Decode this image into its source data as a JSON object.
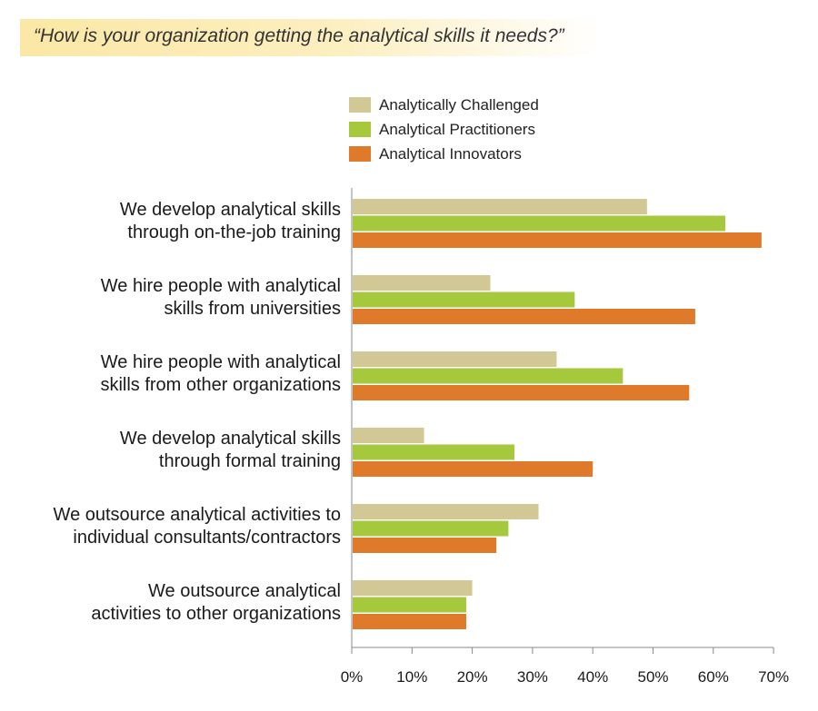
{
  "header": {
    "title": "“How is your organization getting the analytical skills it needs?”"
  },
  "chart_data": {
    "type": "bar",
    "orientation": "horizontal",
    "title": "“How is your organization getting the analytical skills it needs?”",
    "xlabel": "",
    "ylabel": "",
    "xlim": [
      0,
      70
    ],
    "ticks": [
      0,
      10,
      20,
      30,
      40,
      50,
      60,
      70
    ],
    "tick_labels": [
      "0%",
      "10%",
      "20%",
      "30%",
      "40%",
      "50%",
      "60%",
      "70%"
    ],
    "grid": false,
    "legend_position": "top",
    "categories": [
      [
        "We develop analytical skills",
        "through on-the-job training"
      ],
      [
        "We hire people with analytical",
        "skills from universities"
      ],
      [
        "We hire people with analytical",
        "skills from other organizations"
      ],
      [
        "We develop analytical skills",
        "through formal training"
      ],
      [
        "We outsource analytical activities to",
        "individual consultants/contractors"
      ],
      [
        "We outsource analytical",
        "activities to other organizations"
      ]
    ],
    "series": [
      {
        "name": "Analytically Challenged",
        "color": "#d2c896",
        "values": [
          49,
          23,
          34,
          12,
          31,
          20
        ]
      },
      {
        "name": "Analytical Practitioners",
        "color": "#a6c83c",
        "values": [
          62,
          37,
          45,
          27,
          26,
          19
        ]
      },
      {
        "name": "Analytical Innovators",
        "color": "#de7a29",
        "values": [
          68,
          57,
          56,
          40,
          24,
          19
        ]
      }
    ]
  }
}
